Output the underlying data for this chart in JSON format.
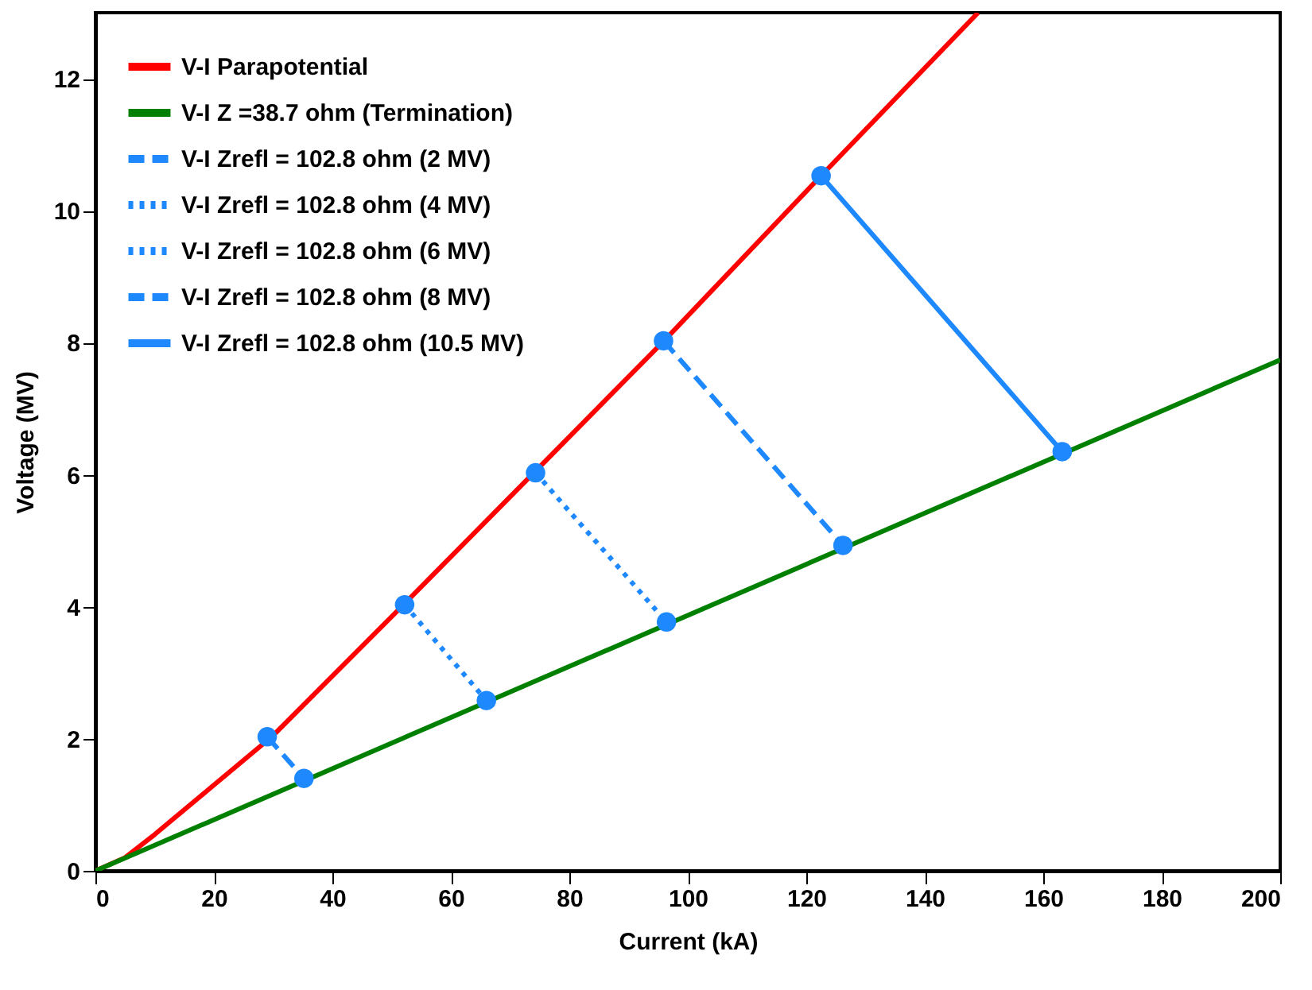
{
  "chart_data": {
    "type": "line",
    "xlabel": "Current (kA)",
    "ylabel": "Voltage (MV)",
    "xlim": [
      0,
      200
    ],
    "xticks": [
      0,
      20,
      40,
      60,
      80,
      100,
      120,
      140,
      160,
      180,
      200
    ],
    "ylim": [
      0,
      13
    ],
    "yticks": [
      0,
      2,
      4,
      6,
      8,
      10,
      12
    ],
    "legend": "top left",
    "series": [
      {
        "name": "V-I Parapotential",
        "color": "#ff0000",
        "line_style": "solid",
        "x": [
          0,
          5,
          10,
          20,
          30,
          52,
          74,
          96,
          122.5,
          149
        ],
        "values": [
          0,
          0.2,
          0.55,
          1.3,
          2.05,
          4.03,
          6.03,
          8.03,
          10.53,
          13
        ]
      },
      {
        "name": "V-I Z =38.7 ohm (Termination)",
        "color": "#008000",
        "line_style": "solid",
        "x": [
          0,
          200
        ],
        "values": [
          0,
          7.74
        ]
      },
      {
        "name": "V-I Zrefl = 102.8 ohm (2 MV)",
        "color": "#1e88ff",
        "line_style": "dashed",
        "marker": "circle",
        "x": [
          29.0,
          35.2
        ],
        "values": [
          2.03,
          1.4
        ]
      },
      {
        "name": "V-I Zrefl = 102.8 ohm (4 MV)",
        "color": "#1e88ff",
        "line_style": "dotted",
        "marker": "circle",
        "x": [
          52.2,
          66.0
        ],
        "values": [
          4.03,
          2.58
        ]
      },
      {
        "name": "V-I Zrefl = 102.8 ohm (6 MV)",
        "color": "#1e88ff",
        "line_style": "dotted",
        "marker": "circle",
        "x": [
          74.3,
          96.4
        ],
        "values": [
          6.03,
          3.77
        ]
      },
      {
        "name": "V-I Zrefl = 102.8 ohm (8 MV)",
        "color": "#1e88ff",
        "line_style": "dashed",
        "marker": "circle",
        "x": [
          95.9,
          126.2
        ],
        "values": [
          8.03,
          4.93
        ]
      },
      {
        "name": "V-I Zrefl = 102.8 ohm (10.5 MV)",
        "color": "#1e88ff",
        "line_style": "solid",
        "marker": "circle",
        "x": [
          122.5,
          163.2
        ],
        "values": [
          10.53,
          6.35
        ]
      }
    ]
  }
}
